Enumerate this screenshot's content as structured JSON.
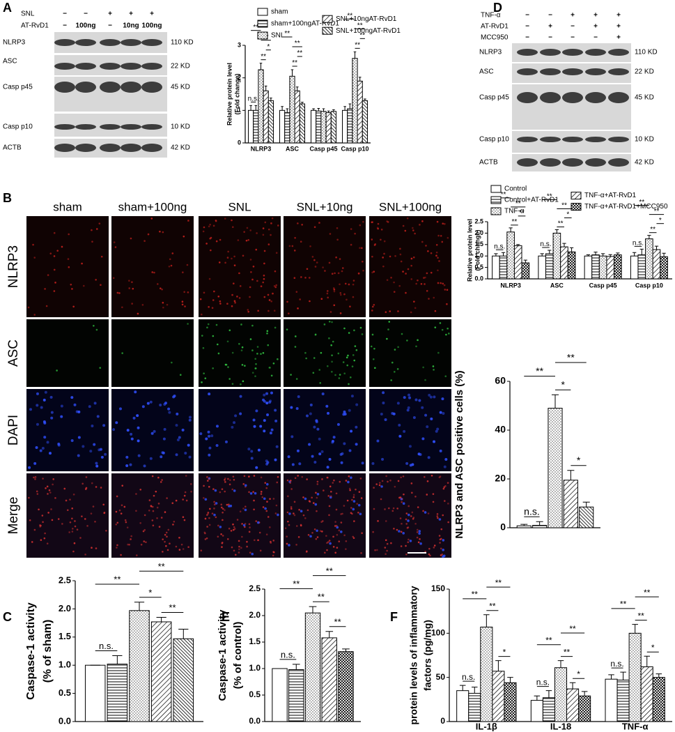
{
  "panel_labels": [
    "A",
    "B",
    "C",
    "D",
    "E",
    "F"
  ],
  "blot_a": {
    "treatments": [
      {
        "name": "SNL",
        "marks": [
          "−",
          "−",
          "+",
          "+",
          "+"
        ]
      },
      {
        "name": "AT-RvD1",
        "marks": [
          "−",
          "100ng",
          "−",
          "10ng",
          "100ng"
        ]
      }
    ],
    "bands": [
      {
        "name": "NLRP3",
        "size": "110 KD"
      },
      {
        "name": "ASC",
        "size": "22 KD"
      },
      {
        "name": "Casp p45",
        "size": "45 KD"
      },
      {
        "name": "Casp p10",
        "size": "10 KD"
      },
      {
        "name": "ACTB",
        "size": "42 KD"
      }
    ]
  },
  "blot_d": {
    "treatments": [
      {
        "name": "TNF-α",
        "marks": [
          "−",
          "−",
          "+",
          "+",
          "+"
        ]
      },
      {
        "name": "AT-RvD1",
        "marks": [
          "−",
          "+",
          "−",
          "+",
          "+"
        ]
      },
      {
        "name": "MCC950",
        "marks": [
          "−",
          "−",
          "−",
          "−",
          "+"
        ]
      }
    ],
    "bands": [
      {
        "name": "NLRP3",
        "size": "110 KD"
      },
      {
        "name": "ASC",
        "size": "22 KD"
      },
      {
        "name": "Casp p45",
        "size": "45 KD"
      },
      {
        "name": "Casp p10",
        "size": "10 KD"
      },
      {
        "name": "ACTB",
        "size": "42 KD"
      }
    ]
  },
  "micrographs": {
    "columns": [
      "sham",
      "sham+100ng",
      "SNL",
      "SNL+10ng",
      "SNL+100ng"
    ],
    "rows": [
      "NLRP3",
      "ASC",
      "DAPI",
      "Merge"
    ]
  },
  "chart_data": [
    {
      "type": "bar",
      "ylabel": [
        "Relative protein level",
        "(Fold change)"
      ],
      "categories": [
        "NLRP3",
        "ASC",
        "Casp p45",
        "Casp p10"
      ],
      "series": [
        {
          "name": "sham",
          "pattern": "none",
          "values": [
            1.0,
            1.0,
            1.0,
            1.0
          ],
          "errors": [
            0.15,
            0.12,
            0.05,
            0.12
          ]
        },
        {
          "name": "sham+100ngAT-RvD1",
          "pattern": "horizontal",
          "values": [
            1.0,
            0.93,
            0.98,
            1.05
          ],
          "errors": [
            0.15,
            0.12,
            0.08,
            0.15
          ]
        },
        {
          "name": "SNL",
          "pattern": "dots",
          "values": [
            2.25,
            2.05,
            0.97,
            2.6
          ],
          "errors": [
            0.2,
            0.2,
            0.08,
            0.2
          ]
        },
        {
          "name": "SNL+10ngAT-RvD1",
          "pattern": "diagonal",
          "values": [
            1.6,
            1.6,
            0.93,
            1.9
          ],
          "errors": [
            0.15,
            0.12,
            0.05,
            0.12
          ]
        },
        {
          "name": "SNL+100ngAT-RvD1",
          "pattern": "dense",
          "values": [
            1.3,
            1.2,
            0.97,
            1.3
          ],
          "errors": [
            0.08,
            0.05,
            0.05,
            0.05
          ]
        }
      ],
      "ylim": [
        0,
        3
      ],
      "yticks": [
        0,
        1,
        2,
        3
      ],
      "annotations": [
        {
          "group": 0,
          "from": 0,
          "to": 1,
          "label": "n.s."
        },
        {
          "group": 0,
          "from": 2,
          "to": 3,
          "label": "**"
        },
        {
          "group": 0,
          "from": 3,
          "to": 4,
          "label": "*"
        },
        {
          "group": 0,
          "from": 2,
          "to": 4,
          "label": "**"
        },
        {
          "group": 0,
          "from": 0,
          "to": 2,
          "label": "**"
        },
        {
          "group": 1,
          "from": 2,
          "to": 3,
          "label": "**"
        },
        {
          "group": 1,
          "from": 3,
          "to": 4,
          "label": "**"
        },
        {
          "group": 1,
          "from": 2,
          "to": 4,
          "label": "**"
        },
        {
          "group": 1,
          "from": 0,
          "to": 2,
          "label": "**"
        },
        {
          "group": 3,
          "from": 2,
          "to": 3,
          "label": "**"
        },
        {
          "group": 3,
          "from": 3,
          "to": 4,
          "label": "**"
        },
        {
          "group": 3,
          "from": 2,
          "to": 4,
          "label": "**"
        },
        {
          "group": 3,
          "from": 0,
          "to": 2,
          "label": "**"
        }
      ]
    },
    {
      "type": "bar",
      "ylabel": [
        "Relative protein level",
        "(Fold change)"
      ],
      "categories": [
        "NLRP3",
        "ASC",
        "Casp p45",
        "Casp p10"
      ],
      "series": [
        {
          "name": "Control",
          "pattern": "none",
          "values": [
            1.0,
            1.0,
            1.0,
            1.0
          ],
          "errors": [
            0.1,
            0.1,
            0.05,
            0.15
          ]
        },
        {
          "name": "Control+AT-RvD1",
          "pattern": "horizontal",
          "values": [
            1.0,
            1.1,
            1.05,
            1.05
          ],
          "errors": [
            0.15,
            0.15,
            0.12,
            0.25
          ]
        },
        {
          "name": "TNF-α",
          "pattern": "dots",
          "values": [
            2.05,
            2.0,
            1.0,
            1.75
          ],
          "errors": [
            0.18,
            0.15,
            0.1,
            0.15
          ]
        },
        {
          "name": "TNF-α+AT-RvD1",
          "pattern": "diagonal",
          "values": [
            1.45,
            1.4,
            0.98,
            1.28
          ],
          "errors": [
            0.05,
            0.15,
            0.08,
            0.15
          ]
        },
        {
          "name": "TNF-α+AT-RvD1+MCC950",
          "pattern": "checker",
          "values": [
            0.7,
            1.18,
            1.05,
            0.97
          ],
          "errors": [
            0.12,
            0.18,
            0.08,
            0.15
          ]
        }
      ],
      "ylim": [
        0,
        2.5
      ],
      "yticks": [
        {
          "value": 0,
          "label": "0.0"
        },
        {
          "value": 0.5,
          "label": "0.5"
        },
        {
          "value": 1,
          "label": "1.0"
        },
        {
          "value": 1.5,
          "label": "1.5"
        },
        {
          "value": 2,
          "label": "2.0"
        },
        {
          "value": 2.5,
          "label": "2.5"
        }
      ],
      "annotations": [
        {
          "group": 0,
          "from": 0,
          "to": 1,
          "label": "n.s."
        },
        {
          "group": 0,
          "from": 2,
          "to": 3,
          "label": "**"
        },
        {
          "group": 0,
          "from": 3,
          "to": 4,
          "label": "**"
        },
        {
          "group": 0,
          "from": 2,
          "to": 4,
          "label": "**"
        },
        {
          "group": 0,
          "from": 0,
          "to": 2,
          "label": "**"
        },
        {
          "group": 1,
          "from": 0,
          "to": 1,
          "label": "n.s."
        },
        {
          "group": 1,
          "from": 2,
          "to": 3,
          "label": "**"
        },
        {
          "group": 1,
          "from": 3,
          "to": 4,
          "label": "*"
        },
        {
          "group": 1,
          "from": 2,
          "to": 4,
          "label": "**"
        },
        {
          "group": 1,
          "from": 0,
          "to": 2,
          "label": "**"
        },
        {
          "group": 3,
          "from": 0,
          "to": 1,
          "label": "n.s."
        },
        {
          "group": 3,
          "from": 2,
          "to": 3,
          "label": "**"
        },
        {
          "group": 3,
          "from": 3,
          "to": 4,
          "label": "*"
        },
        {
          "group": 3,
          "from": 2,
          "to": 4,
          "label": "**"
        },
        {
          "group": 3,
          "from": 0,
          "to": 2,
          "label": "**"
        }
      ]
    },
    {
      "type": "bar",
      "ylabel": [
        "NLRP3 and ASC positive cells (%)"
      ],
      "categories": [
        null,
        null,
        null,
        null,
        null
      ],
      "patterns": [
        "none",
        "horizontal",
        "dots",
        "diagonal",
        "dense"
      ],
      "values": [
        0.8,
        1.0,
        49,
        19.5,
        8.5
      ],
      "errors": [
        0.6,
        1.5,
        5.5,
        4,
        2
      ],
      "ylim": [
        0,
        60
      ],
      "yticks": [
        0,
        20,
        40,
        60
      ],
      "annotations": [
        {
          "from": 0,
          "to": 1,
          "label": "n.s."
        },
        {
          "from": 3,
          "to": 4,
          "label": "*"
        },
        {
          "from": 2,
          "to": 3,
          "label": "*"
        },
        {
          "from": 0,
          "to": 2,
          "label": "**"
        },
        {
          "from": 2,
          "to": 4,
          "label": "**"
        }
      ]
    },
    {
      "type": "bar",
      "ylabel": [
        "Caspase-1 activity",
        "(% of sham)"
      ],
      "categories": [
        null,
        null,
        null,
        null,
        null
      ],
      "patterns": [
        "none",
        "horizontal",
        "dots",
        "diagonal",
        "dense"
      ],
      "values": [
        1.0,
        1.02,
        1.97,
        1.77,
        1.47
      ],
      "errors": [
        0,
        0.15,
        0.15,
        0.08,
        0.17
      ],
      "ylim": [
        0,
        2.5
      ],
      "yticks": [
        {
          "value": 0,
          "label": "0.0"
        },
        {
          "value": 0.5,
          "label": "0.5"
        },
        {
          "value": 1,
          "label": "1.0"
        },
        {
          "value": 1.5,
          "label": "1.5"
        },
        {
          "value": 2,
          "label": "2.0"
        },
        {
          "value": 2.5,
          "label": "2.5"
        }
      ],
      "annotations": [
        {
          "from": 0,
          "to": 1,
          "label": "n.s."
        },
        {
          "from": 3,
          "to": 4,
          "label": "**"
        },
        {
          "from": 2,
          "to": 3,
          "label": "*"
        },
        {
          "from": 0,
          "to": 2,
          "label": "**"
        },
        {
          "from": 2,
          "to": 4,
          "label": "**"
        }
      ]
    },
    {
      "type": "bar",
      "ylabel": [
        "Caspase-1 activity",
        "(% of control)"
      ],
      "categories": [
        null,
        null,
        null,
        null,
        null
      ],
      "patterns": [
        "none",
        "horizontal",
        "dots",
        "diagonal",
        "checker"
      ],
      "values": [
        1.0,
        0.98,
        2.05,
        1.58,
        1.32
      ],
      "errors": [
        0,
        0.1,
        0.12,
        0.12,
        0.05
      ],
      "ylim": [
        0,
        2.5
      ],
      "yticks": [
        {
          "value": 0,
          "label": "0.0"
        },
        {
          "value": 0.5,
          "label": "0.5"
        },
        {
          "value": 1,
          "label": "1.0"
        },
        {
          "value": 1.5,
          "label": "1.5"
        },
        {
          "value": 2,
          "label": "2.0"
        },
        {
          "value": 2.5,
          "label": "2.5"
        }
      ],
      "annotations": [
        {
          "from": 0,
          "to": 1,
          "label": "n.s."
        },
        {
          "from": 3,
          "to": 4,
          "label": "**"
        },
        {
          "from": 2,
          "to": 3,
          "label": "**"
        },
        {
          "from": 0,
          "to": 2,
          "label": "**"
        },
        {
          "from": 2,
          "to": 4,
          "label": "**"
        }
      ]
    },
    {
      "type": "bar",
      "ylabel": [
        "protein levels of inflammatory",
        "factors (pg/mg)"
      ],
      "categories": [
        "IL-1β",
        "IL-18",
        "TNF-α"
      ],
      "series": [
        {
          "pattern": "none",
          "values": [
            35,
            24,
            48
          ],
          "errors": [
            6,
            5,
            5
          ]
        },
        {
          "pattern": "horizontal",
          "values": [
            32,
            27,
            47
          ],
          "errors": [
            7,
            8,
            9
          ]
        },
        {
          "pattern": "dots",
          "values": [
            107,
            61,
            100
          ],
          "errors": [
            14,
            8,
            10
          ]
        },
        {
          "pattern": "diagonal",
          "values": [
            57,
            37,
            62
          ],
          "errors": [
            12,
            7,
            12
          ]
        },
        {
          "pattern": "checker",
          "values": [
            44,
            29,
            50
          ],
          "errors": [
            6,
            5,
            4
          ]
        }
      ],
      "ylim": [
        0,
        150
      ],
      "yticks": [
        0,
        50,
        100,
        150
      ],
      "annotations": [
        {
          "group": 0,
          "from": 0,
          "to": 1,
          "label": "n.s."
        },
        {
          "group": 0,
          "from": 3,
          "to": 4,
          "label": "*"
        },
        {
          "group": 0,
          "from": 2,
          "to": 3,
          "label": "**"
        },
        {
          "group": 0,
          "from": 0,
          "to": 2,
          "label": "**"
        },
        {
          "group": 0,
          "from": 2,
          "to": 4,
          "label": "**"
        },
        {
          "group": 1,
          "from": 0,
          "to": 1,
          "label": "n.s."
        },
        {
          "group": 1,
          "from": 3,
          "to": 4,
          "label": "*"
        },
        {
          "group": 1,
          "from": 2,
          "to": 3,
          "label": "**"
        },
        {
          "group": 1,
          "from": 0,
          "to": 2,
          "label": "**"
        },
        {
          "group": 1,
          "from": 2,
          "to": 4,
          "label": "**"
        },
        {
          "group": 2,
          "from": 0,
          "to": 1,
          "label": "n.s."
        },
        {
          "group": 2,
          "from": 3,
          "to": 4,
          "label": "*"
        },
        {
          "group": 2,
          "from": 2,
          "to": 3,
          "label": "**"
        },
        {
          "group": 2,
          "from": 0,
          "to": 2,
          "label": "**"
        },
        {
          "group": 2,
          "from": 2,
          "to": 4,
          "label": "**"
        }
      ]
    }
  ]
}
